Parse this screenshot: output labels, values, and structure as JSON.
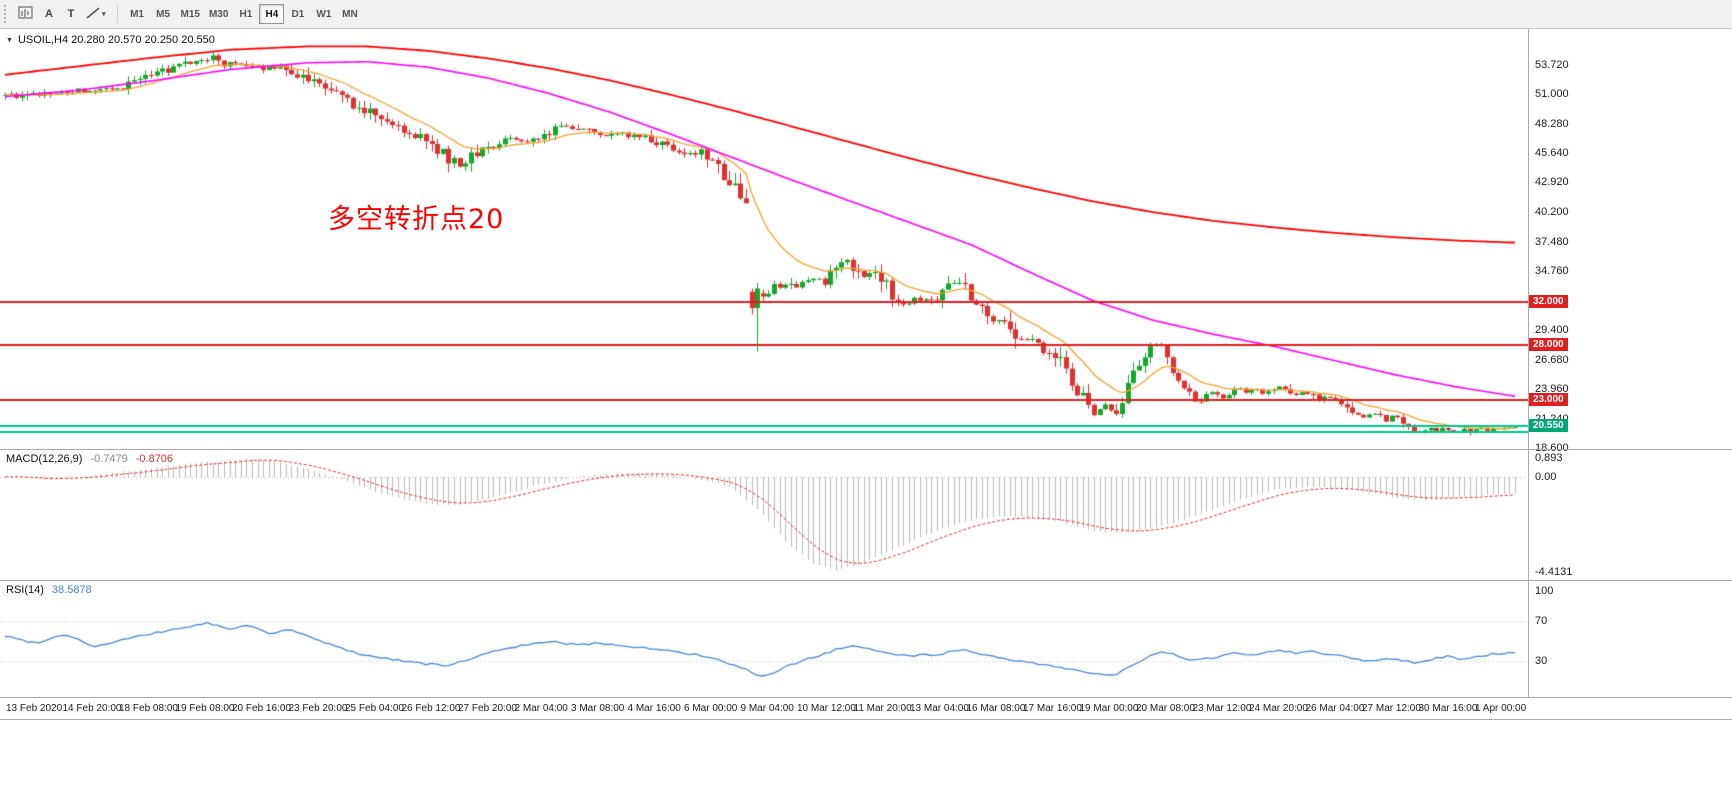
{
  "toolbar": {
    "tools": {
      "a_label": "A",
      "t_label": "T"
    },
    "timeframes": [
      "M1",
      "M5",
      "M15",
      "M30",
      "H1",
      "H4",
      "D1",
      "W1",
      "MN"
    ],
    "active_timeframe": "H4"
  },
  "main_chart": {
    "title": "USOIL,H4 20.280 20.570 20.250 20.550",
    "annotation": {
      "text": "多空转折点20",
      "color": "#fe0000"
    },
    "price_axis": {
      "labels": [
        "53.720",
        "51.000",
        "48.280",
        "45.640",
        "42.920",
        "40.200",
        "37.480",
        "34.760",
        "29.400",
        "26.680",
        "23.960",
        "21.240",
        "18.600"
      ],
      "top_price": 57.0,
      "bottom_price": 18.47
    },
    "hlines": [
      {
        "price": 32.0,
        "label": "32.000",
        "color": "#e02020"
      },
      {
        "price": 28.0,
        "label": "28.000",
        "color": "#e02020"
      },
      {
        "price": 23.0,
        "label": "23.000",
        "color": "#e02020"
      }
    ],
    "band_lines": [
      {
        "price": 20.62,
        "color": "#00c98d"
      },
      {
        "price": 20.02,
        "color": "#00c98d"
      }
    ],
    "price_tag": {
      "label": "20.550",
      "price": 20.55,
      "color": "#00a878"
    },
    "colors": {
      "up": "#17a62d",
      "down": "#e03030",
      "ma_fast": "#f5a430",
      "ma_mid": "#ff00ff",
      "ma_slow": "#ff0000"
    }
  },
  "chart_data": {
    "type": "candlestick",
    "symbol": "USOIL",
    "timeframe": "H4",
    "ohlc_current": {
      "open": 20.28,
      "high": 20.57,
      "low": 20.25,
      "close": 20.55
    },
    "num_bars": 270,
    "close_waypoints": [
      [
        0.0,
        51.0
      ],
      [
        0.008,
        50.6
      ],
      [
        0.016,
        51.1
      ],
      [
        0.024,
        50.8
      ],
      [
        0.032,
        51.3
      ],
      [
        0.04,
        51.0
      ],
      [
        0.048,
        51.4
      ],
      [
        0.058,
        51.2
      ],
      [
        0.068,
        51.6
      ],
      [
        0.077,
        51.5
      ],
      [
        0.085,
        52.0
      ],
      [
        0.094,
        52.6
      ],
      [
        0.103,
        53.1
      ],
      [
        0.112,
        53.3
      ],
      [
        0.12,
        53.8
      ],
      [
        0.13,
        54.1
      ],
      [
        0.138,
        54.4
      ],
      [
        0.146,
        53.7
      ],
      [
        0.152,
        54.1
      ],
      [
        0.158,
        53.6
      ],
      [
        0.165,
        53.8
      ],
      [
        0.172,
        53.4
      ],
      [
        0.18,
        53.6
      ],
      [
        0.188,
        53.1
      ],
      [
        0.196,
        52.7
      ],
      [
        0.205,
        52.1
      ],
      [
        0.213,
        51.5
      ],
      [
        0.222,
        50.8
      ],
      [
        0.231,
        50.1
      ],
      [
        0.24,
        49.4
      ],
      [
        0.25,
        48.6
      ],
      [
        0.26,
        47.9
      ],
      [
        0.269,
        47.6
      ],
      [
        0.278,
        46.8
      ],
      [
        0.287,
        46.0
      ],
      [
        0.295,
        45.0
      ],
      [
        0.302,
        44.5
      ],
      [
        0.309,
        45.3
      ],
      [
        0.317,
        46.0
      ],
      [
        0.327,
        46.5
      ],
      [
        0.336,
        46.9
      ],
      [
        0.346,
        46.8
      ],
      [
        0.355,
        47.3
      ],
      [
        0.365,
        47.8
      ],
      [
        0.375,
        48.0
      ],
      [
        0.385,
        47.6
      ],
      [
        0.394,
        47.2
      ],
      [
        0.404,
        47.6
      ],
      [
        0.413,
        47.3
      ],
      [
        0.423,
        47.2
      ],
      [
        0.432,
        46.6
      ],
      [
        0.442,
        46.1
      ],
      [
        0.452,
        45.4
      ],
      [
        0.462,
        45.8
      ],
      [
        0.47,
        44.6
      ],
      [
        0.478,
        43.2
      ],
      [
        0.486,
        42.0
      ],
      [
        0.4935,
        41.2
      ],
      [
        0.4962,
        31.5
      ],
      [
        0.5,
        33.0
      ],
      [
        0.504,
        32.3
      ],
      [
        0.509,
        33.6
      ],
      [
        0.514,
        32.8
      ],
      [
        0.519,
        34.0
      ],
      [
        0.524,
        33.3
      ],
      [
        0.529,
        34.2
      ],
      [
        0.534,
        33.9
      ],
      [
        0.538,
        34.4
      ],
      [
        0.543,
        33.6
      ],
      [
        0.548,
        34.7
      ],
      [
        0.553,
        35.4
      ],
      [
        0.558,
        35.9
      ],
      [
        0.563,
        35.0
      ],
      [
        0.568,
        34.4
      ],
      [
        0.573,
        34.8
      ],
      [
        0.577,
        34.2
      ],
      [
        0.582,
        33.6
      ],
      [
        0.587,
        32.8
      ],
      [
        0.592,
        32.2
      ],
      [
        0.597,
        31.6
      ],
      [
        0.602,
        32.3
      ],
      [
        0.607,
        31.8
      ],
      [
        0.612,
        32.4
      ],
      [
        0.615,
        32.0
      ],
      [
        0.62,
        32.8
      ],
      [
        0.625,
        33.4
      ],
      [
        0.63,
        33.8
      ],
      [
        0.635,
        33.2
      ],
      [
        0.64,
        32.4
      ],
      [
        0.645,
        31.4
      ],
      [
        0.65,
        30.5
      ],
      [
        0.654,
        30.0
      ],
      [
        0.659,
        30.6
      ],
      [
        0.664,
        29.8
      ],
      [
        0.669,
        29.0
      ],
      [
        0.674,
        28.3
      ],
      [
        0.679,
        28.8
      ],
      [
        0.684,
        28.0
      ],
      [
        0.688,
        27.3
      ],
      [
        0.692,
        27.6
      ],
      [
        0.697,
        26.8
      ],
      [
        0.702,
        25.8
      ],
      [
        0.707,
        24.7
      ],
      [
        0.712,
        23.5
      ],
      [
        0.717,
        22.4
      ],
      [
        0.722,
        21.6
      ],
      [
        0.727,
        22.6
      ],
      [
        0.731,
        22.2
      ],
      [
        0.735,
        21.4
      ],
      [
        0.739,
        22.8
      ],
      [
        0.744,
        24.2
      ],
      [
        0.749,
        25.6
      ],
      [
        0.754,
        26.9
      ],
      [
        0.759,
        27.9
      ],
      [
        0.764,
        28.3
      ],
      [
        0.769,
        27.2
      ],
      [
        0.774,
        25.8
      ],
      [
        0.779,
        24.4
      ],
      [
        0.784,
        23.2
      ],
      [
        0.789,
        22.7
      ],
      [
        0.794,
        23.3
      ],
      [
        0.799,
        23.8
      ],
      [
        0.804,
        23.4
      ],
      [
        0.808,
        23.1
      ],
      [
        0.813,
        23.7
      ],
      [
        0.818,
        24.1
      ],
      [
        0.823,
        23.6
      ],
      [
        0.828,
        24.0
      ],
      [
        0.833,
        23.5
      ],
      [
        0.838,
        23.9
      ],
      [
        0.846,
        24.2
      ],
      [
        0.851,
        23.7
      ],
      [
        0.856,
        23.3
      ],
      [
        0.861,
        23.8
      ],
      [
        0.866,
        23.3
      ],
      [
        0.871,
        22.9
      ],
      [
        0.876,
        23.4
      ],
      [
        0.88,
        22.9
      ],
      [
        0.885,
        22.7
      ],
      [
        0.89,
        22.3
      ],
      [
        0.895,
        21.8
      ],
      [
        0.9,
        21.3
      ],
      [
        0.905,
        21.9
      ],
      [
        0.91,
        21.5
      ],
      [
        0.915,
        21.0
      ],
      [
        0.919,
        21.6
      ],
      [
        0.923,
        21.4
      ],
      [
        0.928,
        20.8
      ],
      [
        0.933,
        20.3
      ],
      [
        0.938,
        19.9
      ],
      [
        0.943,
        20.4
      ],
      [
        0.948,
        20.0
      ],
      [
        0.952,
        20.5
      ],
      [
        0.957,
        20.2
      ],
      [
        0.962,
        19.9
      ],
      [
        0.967,
        20.3
      ],
      [
        0.971,
        20.0
      ],
      [
        0.976,
        20.4
      ],
      [
        0.981,
        20.1
      ],
      [
        0.986,
        20.5
      ],
      [
        0.99,
        20.2
      ],
      [
        0.995,
        20.4
      ],
      [
        1.0,
        20.55
      ]
    ],
    "overrides": [
      {
        "t": 0.4944,
        "o": 32.9,
        "h": 33.2,
        "l": 30.8,
        "c": 31.4
      },
      {
        "t": 0.4981,
        "o": 31.4,
        "h": 33.7,
        "l": 27.4,
        "c": 33.2
      }
    ],
    "ma_fast_period": 13,
    "ma_mid_waypoints": [
      [
        0,
        50.8
      ],
      [
        0.05,
        51.4
      ],
      [
        0.1,
        52.3
      ],
      [
        0.15,
        53.3
      ],
      [
        0.2,
        53.9
      ],
      [
        0.24,
        54.0
      ],
      [
        0.28,
        53.5
      ],
      [
        0.32,
        52.5
      ],
      [
        0.36,
        51.1
      ],
      [
        0.4,
        49.4
      ],
      [
        0.44,
        47.4
      ],
      [
        0.48,
        45.3
      ],
      [
        0.52,
        43.2
      ],
      [
        0.56,
        41.2
      ],
      [
        0.6,
        39.2
      ],
      [
        0.64,
        37.2
      ],
      [
        0.68,
        34.6
      ],
      [
        0.72,
        32.1
      ],
      [
        0.76,
        30.3
      ],
      [
        0.8,
        29.0
      ],
      [
        0.84,
        27.9
      ],
      [
        0.88,
        26.6
      ],
      [
        0.92,
        25.3
      ],
      [
        0.96,
        24.2
      ],
      [
        1.0,
        23.3
      ]
    ],
    "ma_slow_waypoints": [
      [
        0,
        52.8
      ],
      [
        0.05,
        53.6
      ],
      [
        0.1,
        54.4
      ],
      [
        0.15,
        55.1
      ],
      [
        0.2,
        55.4
      ],
      [
        0.24,
        55.4
      ],
      [
        0.28,
        55.0
      ],
      [
        0.32,
        54.3
      ],
      [
        0.36,
        53.4
      ],
      [
        0.4,
        52.3
      ],
      [
        0.44,
        51.0
      ],
      [
        0.48,
        49.6
      ],
      [
        0.52,
        48.1
      ],
      [
        0.56,
        46.6
      ],
      [
        0.6,
        45.1
      ],
      [
        0.64,
        43.7
      ],
      [
        0.68,
        42.4
      ],
      [
        0.72,
        41.2
      ],
      [
        0.76,
        40.2
      ],
      [
        0.8,
        39.4
      ],
      [
        0.84,
        38.8
      ],
      [
        0.88,
        38.3
      ],
      [
        0.92,
        37.9
      ],
      [
        0.96,
        37.6
      ],
      [
        1.0,
        37.4
      ]
    ],
    "macd": {
      "label": "MACD(12,26,9)",
      "value": "-0.7479",
      "signal_value": "-0.8706",
      "axis_labels": [
        "0.893",
        "0.00",
        "-4.4131"
      ],
      "max": 0.893,
      "min": -4.4131,
      "histogram_color": "#b8b8b8",
      "signal_color": "#e03030",
      "waypoints": [
        [
          0,
          0.05
        ],
        [
          0.03,
          -0.12
        ],
        [
          0.06,
          0.1
        ],
        [
          0.09,
          0.35
        ],
        [
          0.12,
          0.6
        ],
        [
          0.15,
          0.8
        ],
        [
          0.165,
          0.87
        ],
        [
          0.18,
          0.7
        ],
        [
          0.2,
          0.4
        ],
        [
          0.22,
          -0.05
        ],
        [
          0.24,
          -0.55
        ],
        [
          0.26,
          -1.0
        ],
        [
          0.28,
          -1.25
        ],
        [
          0.3,
          -1.3
        ],
        [
          0.32,
          -1.0
        ],
        [
          0.34,
          -0.6
        ],
        [
          0.36,
          -0.25
        ],
        [
          0.38,
          0.0
        ],
        [
          0.4,
          0.15
        ],
        [
          0.42,
          0.2
        ],
        [
          0.44,
          0.1
        ],
        [
          0.46,
          -0.1
        ],
        [
          0.48,
          -0.45
        ],
        [
          0.5,
          -1.6
        ],
        [
          0.52,
          -3.2
        ],
        [
          0.535,
          -4.0
        ],
        [
          0.55,
          -4.35
        ],
        [
          0.565,
          -4.1
        ],
        [
          0.58,
          -3.6
        ],
        [
          0.6,
          -3.0
        ],
        [
          0.62,
          -2.4
        ],
        [
          0.64,
          -2.0
        ],
        [
          0.66,
          -1.8
        ],
        [
          0.68,
          -1.9
        ],
        [
          0.7,
          -2.1
        ],
        [
          0.72,
          -2.5
        ],
        [
          0.74,
          -2.6
        ],
        [
          0.76,
          -2.4
        ],
        [
          0.78,
          -2.0
        ],
        [
          0.8,
          -1.5
        ],
        [
          0.82,
          -1.0
        ],
        [
          0.84,
          -0.6
        ],
        [
          0.86,
          -0.45
        ],
        [
          0.88,
          -0.5
        ],
        [
          0.9,
          -0.7
        ],
        [
          0.92,
          -0.95
        ],
        [
          0.94,
          -1.05
        ],
        [
          0.96,
          -0.95
        ],
        [
          0.98,
          -0.85
        ],
        [
          1.0,
          -0.75
        ]
      ]
    },
    "rsi": {
      "label": "RSI(14)",
      "value": "38.5878",
      "axis_labels": [
        "100",
        "70",
        "30"
      ],
      "levels": [
        70,
        30
      ],
      "line_color": "#4a86d8",
      "level_color": "#c0c0c0",
      "waypoints": [
        [
          0,
          55
        ],
        [
          0.02,
          48
        ],
        [
          0.04,
          57
        ],
        [
          0.06,
          44
        ],
        [
          0.08,
          52
        ],
        [
          0.1,
          58
        ],
        [
          0.12,
          64
        ],
        [
          0.135,
          68
        ],
        [
          0.15,
          61
        ],
        [
          0.16,
          66
        ],
        [
          0.175,
          58
        ],
        [
          0.19,
          61
        ],
        [
          0.205,
          52
        ],
        [
          0.22,
          44
        ],
        [
          0.235,
          37
        ],
        [
          0.25,
          33
        ],
        [
          0.265,
          30
        ],
        [
          0.28,
          27
        ],
        [
          0.295,
          25
        ],
        [
          0.305,
          31
        ],
        [
          0.32,
          38
        ],
        [
          0.335,
          44
        ],
        [
          0.35,
          47
        ],
        [
          0.365,
          49
        ],
        [
          0.38,
          46
        ],
        [
          0.395,
          48
        ],
        [
          0.41,
          45
        ],
        [
          0.425,
          43
        ],
        [
          0.44,
          40
        ],
        [
          0.455,
          37
        ],
        [
          0.47,
          32
        ],
        [
          0.48,
          27
        ],
        [
          0.49,
          22
        ],
        [
          0.5,
          13
        ],
        [
          0.51,
          19
        ],
        [
          0.52,
          26
        ],
        [
          0.53,
          31
        ],
        [
          0.54,
          36
        ],
        [
          0.55,
          41
        ],
        [
          0.56,
          45
        ],
        [
          0.57,
          42
        ],
        [
          0.58,
          40
        ],
        [
          0.59,
          37
        ],
        [
          0.6,
          35
        ],
        [
          0.61,
          37
        ],
        [
          0.615,
          35
        ],
        [
          0.625,
          39
        ],
        [
          0.635,
          42
        ],
        [
          0.645,
          38
        ],
        [
          0.655,
          34
        ],
        [
          0.665,
          31
        ],
        [
          0.675,
          29
        ],
        [
          0.685,
          27
        ],
        [
          0.695,
          25
        ],
        [
          0.705,
          22
        ],
        [
          0.715,
          19
        ],
        [
          0.725,
          17
        ],
        [
          0.735,
          15
        ],
        [
          0.74,
          20
        ],
        [
          0.75,
          28
        ],
        [
          0.76,
          36
        ],
        [
          0.765,
          40
        ],
        [
          0.775,
          36
        ],
        [
          0.785,
          30
        ],
        [
          0.795,
          32
        ],
        [
          0.805,
          35
        ],
        [
          0.815,
          38
        ],
        [
          0.825,
          36
        ],
        [
          0.835,
          39
        ],
        [
          0.845,
          41
        ],
        [
          0.855,
          38
        ],
        [
          0.865,
          40
        ],
        [
          0.875,
          37
        ],
        [
          0.885,
          35
        ],
        [
          0.895,
          32
        ],
        [
          0.905,
          30
        ],
        [
          0.915,
          33
        ],
        [
          0.925,
          31
        ],
        [
          0.935,
          28
        ],
        [
          0.945,
          32
        ],
        [
          0.955,
          35
        ],
        [
          0.965,
          31
        ],
        [
          0.975,
          34
        ],
        [
          0.985,
          37
        ],
        [
          0.995,
          38
        ],
        [
          1.0,
          38.6
        ]
      ]
    }
  },
  "time_axis": {
    "labels": [
      "13 Feb 2020",
      "14 Feb 20:00",
      "18 Feb 08:00",
      "19 Feb 08:00",
      "20 Feb 16:00",
      "23 Feb 20:00",
      "25 Feb 04:00",
      "26 Feb 12:00",
      "27 Feb 20:00",
      "2 Mar 04:00",
      "3 Mar 08:00",
      "4 Mar 16:00",
      "6 Mar 00:00",
      "9 Mar 04:00",
      "10 Mar 12:00",
      "11 Mar 20:00",
      "13 Mar 04:00",
      "16 Mar 08:00",
      "17 Mar 16:00",
      "19 Mar 00:00",
      "20 Mar 08:00",
      "23 Mar 12:00",
      "24 Mar 20:00",
      "26 Mar 04:00",
      "27 Mar 12:00",
      "30 Mar 16:00",
      "1 Apr 00:00"
    ]
  }
}
